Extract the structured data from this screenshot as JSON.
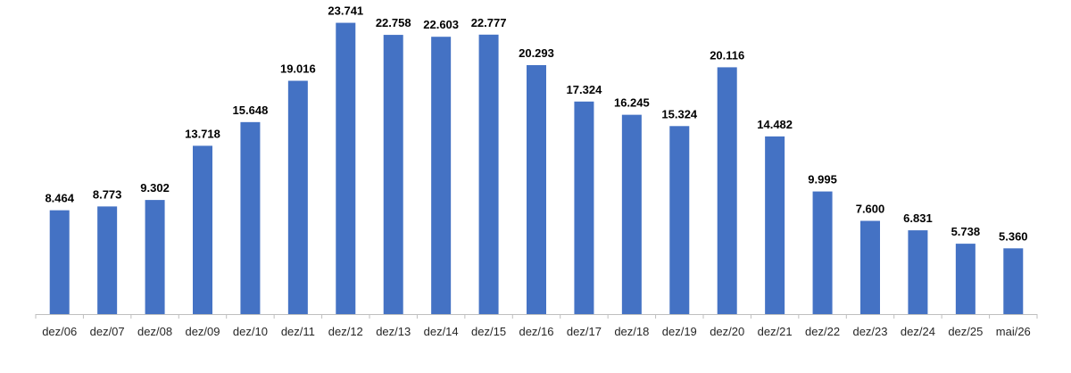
{
  "chart_data": {
    "type": "bar",
    "title": "",
    "xlabel": "",
    "ylabel": "",
    "categories": [
      "dez/06",
      "dez/07",
      "dez/08",
      "dez/09",
      "dez/10",
      "dez/11",
      "dez/12",
      "dez/13",
      "dez/14",
      "dez/15",
      "dez/16",
      "dez/17",
      "dez/18",
      "dez/19",
      "dez/20",
      "dez/21",
      "dez/22",
      "dez/23",
      "dez/24",
      "dez/25",
      "mai/26"
    ],
    "values": [
      8464,
      8773,
      9302,
      13718,
      15648,
      19016,
      23741,
      22758,
      22603,
      22777,
      20293,
      17324,
      16245,
      15324,
      20116,
      14482,
      9995,
      7600,
      6831,
      5738,
      5360
    ],
    "labels": [
      "8.464",
      "8.773",
      "9.302",
      "13.718",
      "15.648",
      "19.016",
      "23.741",
      "22.758",
      "22.603",
      "22.777",
      "20.293",
      "17.324",
      "16.245",
      "15.324",
      "20.116",
      "14.482",
      "9.995",
      "7.600",
      "6.831",
      "5.738",
      "5.360"
    ],
    "ylim": [
      0,
      24000
    ],
    "grid": false,
    "legend": "none",
    "bar_color": "#4472C4"
  }
}
